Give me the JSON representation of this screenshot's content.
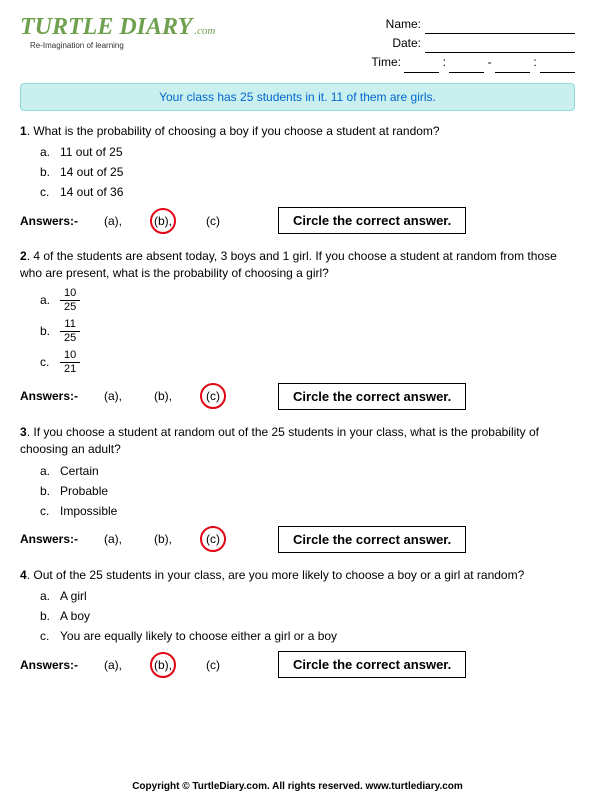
{
  "header": {
    "logo_main": "TURTLE DIARY",
    "logo_dotcom": ".com",
    "logo_tagline": "Re-Imagination of learning",
    "meta": {
      "name_label": "Name:",
      "date_label": "Date:",
      "time_label": "Time:"
    }
  },
  "banner": {
    "text": "Your class has 25 students in it. 11 of them are girls.",
    "bg_color": "#c9f0ef",
    "border_color": "#91dcda",
    "text_color": "#0066cc"
  },
  "questions": [
    {
      "num": "1",
      "stem": "What is the probability of choosing a boy if you choose a student at random?",
      "options_type": "text",
      "options": [
        {
          "letter": "a.",
          "text": "11 out of 25"
        },
        {
          "letter": "b.",
          "text": "14 out of 25"
        },
        {
          "letter": "c.",
          "text": "14 out of 36"
        }
      ],
      "correct_index": 1
    },
    {
      "num": "2",
      "stem": "4 of the students are absent today, 3 boys and 1 girl.  If you choose a student at random from those who are present, what is the probability of choosing a girl?",
      "options_type": "fraction",
      "options": [
        {
          "letter": "a.",
          "num": "10",
          "den": "25"
        },
        {
          "letter": "b.",
          "num": "11",
          "den": "25"
        },
        {
          "letter": "c.",
          "num": "10",
          "den": "21"
        }
      ],
      "correct_index": 2
    },
    {
      "num": "3",
      "stem": "If you choose a student at random out of the 25 students in your class, what is the probability of choosing an adult?",
      "options_type": "text",
      "options": [
        {
          "letter": "a.",
          "text": "Certain"
        },
        {
          "letter": "b.",
          "text": "Probable"
        },
        {
          "letter": "c.",
          "text": "Impossible"
        }
      ],
      "correct_index": 2
    },
    {
      "num": "4",
      "stem": "Out of the 25 students in your class, are you more likely to choose a boy or a girl at random?",
      "options_type": "text",
      "options": [
        {
          "letter": "a.",
          "text": "A girl"
        },
        {
          "letter": "b.",
          "text": "A boy"
        },
        {
          "letter": "c.",
          "text": "You are equally likely to choose either a girl or a boy"
        }
      ],
      "correct_index": 1
    }
  ],
  "answer_row": {
    "label": "Answers:-",
    "choices": [
      "(a),",
      "(b),",
      "(c)"
    ],
    "instruction": "Circle the correct answer.",
    "circle_color": "#e30613"
  },
  "footer": {
    "text": "Copyright © TurtleDiary.com. All rights reserved. www.turtlediary.com"
  }
}
